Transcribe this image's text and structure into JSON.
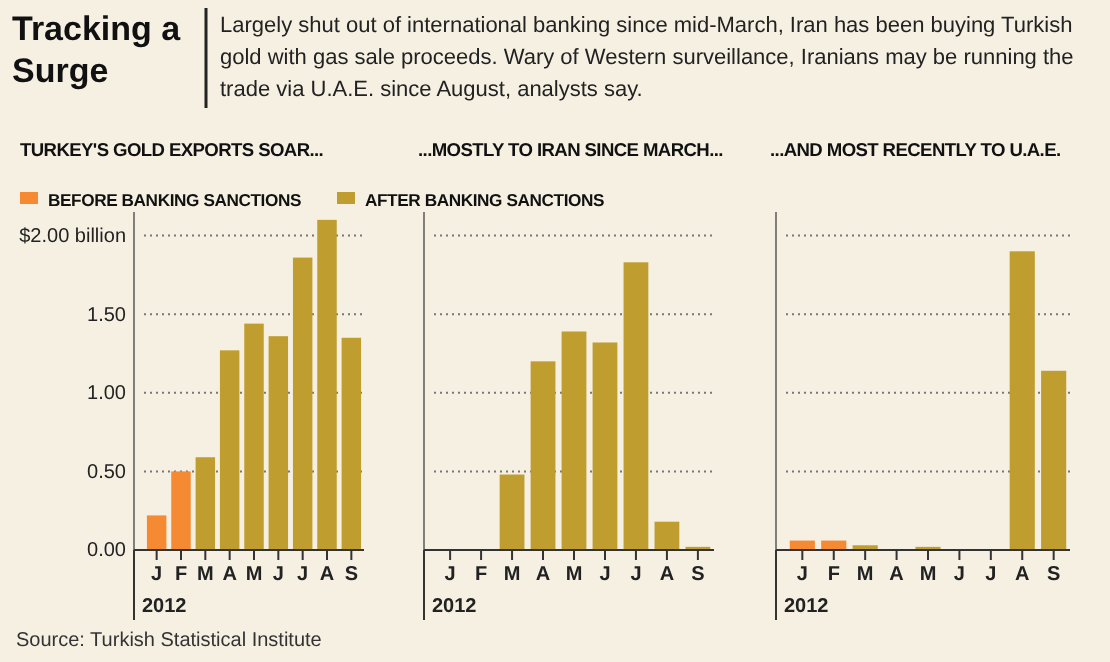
{
  "chart_data": [
    {
      "type": "other",
      "title": "Tracking a Surge",
      "subtitle": "Largely shut out of international banking since mid-March, Iran has been buying Turkish gold with gas sale proceeds. Wary of Western surveillance, Iranians may be running the trade via U.A.E. since August, analysts say.",
      "annotations": [
        "Source: Turkish Statistical Institute"
      ]
    },
    {
      "type": "bar",
      "title": "TURKEY'S GOLD EXPORTS SOAR...",
      "xlabel": "2012",
      "categories": [
        "J",
        "F",
        "M",
        "A",
        "M",
        "J",
        "J",
        "A",
        "S"
      ],
      "series": [
        {
          "name": "BEFORE BANKING SANCTIONS",
          "color": "#f58a33",
          "values": [
            0.22,
            0.5,
            null,
            null,
            null,
            null,
            null,
            null,
            null
          ]
        },
        {
          "name": "AFTER BANKING SANCTIONS",
          "color": "#bf9d2e",
          "values": [
            null,
            null,
            0.59,
            1.27,
            1.44,
            1.36,
            1.86,
            2.1,
            1.35
          ]
        }
      ],
      "ylim": [
        0,
        2.15
      ],
      "yticks": [
        {
          "value": 0,
          "label": "0.00"
        },
        {
          "value": 0.5,
          "label": "0.50"
        },
        {
          "value": 1,
          "label": "1.00"
        },
        {
          "value": 1.5,
          "label": "1.50"
        },
        {
          "value": 2,
          "label": "$2.00 billion"
        }
      ],
      "grid": "y",
      "legend": "top"
    },
    {
      "type": "bar",
      "title": "...MOSTLY TO IRAN SINCE MARCH...",
      "xlabel": "2012",
      "categories": [
        "J",
        "F",
        "M",
        "A",
        "M",
        "J",
        "J",
        "A",
        "S"
      ],
      "values": [
        0,
        0,
        0.48,
        1.2,
        1.39,
        1.32,
        1.83,
        0.18,
        0.02
      ],
      "color": "#bf9d2e",
      "ylim": [
        0,
        2.15
      ],
      "yticks": [
        0,
        0.5,
        1,
        1.5,
        2
      ],
      "grid": "y",
      "tick_labels": "x"
    },
    {
      "type": "bar",
      "title": "...AND MOST RECENTLY TO U.A.E.",
      "xlabel": "2012",
      "categories": [
        "J",
        "F",
        "M",
        "A",
        "M",
        "J",
        "J",
        "A",
        "S"
      ],
      "values": [
        0.06,
        0.06,
        0.03,
        0,
        0.02,
        0,
        0,
        1.9,
        1.14
      ],
      "colors": [
        "#f58a33",
        "#f58a33",
        "#bf9d2e",
        "#bf9d2e",
        "#bf9d2e",
        "#bf9d2e",
        "#bf9d2e",
        "#bf9d2e",
        "#bf9d2e"
      ],
      "ylim": [
        0,
        2.15
      ],
      "yticks": [
        0,
        0.5,
        1,
        1.5,
        2
      ],
      "grid": "y",
      "tick_labels": "x"
    }
  ]
}
